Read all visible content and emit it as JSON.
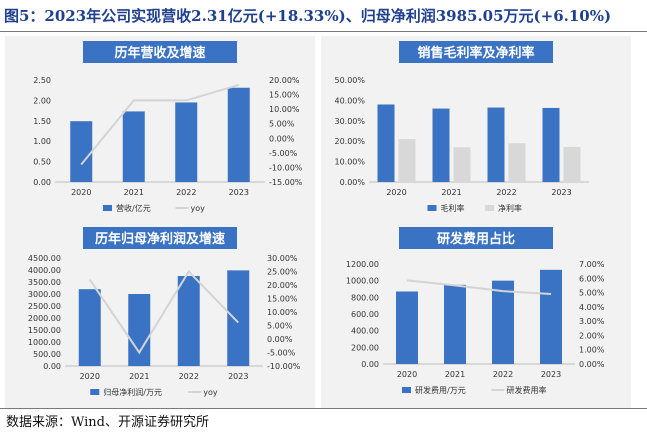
{
  "figure_title": "图5：2023年公司实现营收2.31亿元(+18.33%)、归母净利润3985.05万元(+6.10%)",
  "source": "数据来源：Wind、开源证券研究所",
  "colors": {
    "bar": "#3b73c4",
    "bar2": "#d8d8d8",
    "line": "#d4d4d4",
    "header": "#3b73c4",
    "panel_bg": "#f2f2f2"
  },
  "chart_data": [
    {
      "type": "bar",
      "title": "历年营收及增速",
      "categories": [
        "2020",
        "2021",
        "2022",
        "2023"
      ],
      "series": [
        {
          "name": "营收/亿元",
          "kind": "bar",
          "axis": "left",
          "values": [
            1.49,
            1.73,
            1.95,
            2.31
          ]
        },
        {
          "name": "yoy",
          "kind": "line",
          "axis": "right",
          "values": [
            -9.0,
            13.0,
            13.0,
            18.3
          ]
        }
      ],
      "ylim": [
        0,
        2.5
      ],
      "yticks": [
        "0.00",
        "0.50",
        "1.00",
        "1.50",
        "2.00",
        "2.50"
      ],
      "y2lim": [
        -15,
        20
      ],
      "y2ticks": [
        "-15.00%",
        "-10.00%",
        "-5.00%",
        "0.00%",
        "5.00%",
        "10.00%",
        "15.00%",
        "20.00%"
      ],
      "legend": [
        "营收/亿元",
        "yoy"
      ]
    },
    {
      "type": "bar",
      "title": "销售毛利率及净利率",
      "categories": [
        "2020",
        "2021",
        "2022",
        "2023"
      ],
      "series": [
        {
          "name": "毛利率",
          "kind": "bar",
          "axis": "left",
          "values": [
            38.0,
            36.0,
            36.5,
            36.3
          ]
        },
        {
          "name": "净利率",
          "kind": "bar",
          "axis": "left",
          "values": [
            21.0,
            17.0,
            19.0,
            17.2
          ]
        }
      ],
      "ylim": [
        0,
        50
      ],
      "yticks": [
        "0.00%",
        "10.00%",
        "20.00%",
        "30.00%",
        "40.00%",
        "50.00%"
      ],
      "legend": [
        "毛利率",
        "净利率"
      ]
    },
    {
      "type": "bar",
      "title": "历年归母净利润及增速",
      "categories": [
        "2020",
        "2021",
        "2022",
        "2023"
      ],
      "series": [
        {
          "name": "归母净利润/万元",
          "kind": "bar",
          "axis": "left",
          "values": [
            3200,
            3000,
            3750,
            3985
          ]
        },
        {
          "name": "yoy",
          "kind": "line",
          "axis": "right",
          "values": [
            22.0,
            -5.0,
            25.0,
            6.1
          ]
        }
      ],
      "ylim": [
        0,
        4500
      ],
      "yticks": [
        "0.00",
        "500.00",
        "1000.00",
        "1500.00",
        "2000.00",
        "2500.00",
        "3000.00",
        "3500.00",
        "4000.00",
        "4500.00"
      ],
      "y2lim": [
        -10,
        30
      ],
      "y2ticks": [
        "-10.00%",
        "-5.00%",
        "0.00%",
        "5.00%",
        "10.00%",
        "15.00%",
        "20.00%",
        "25.00%",
        "30.00%"
      ],
      "legend": [
        "归母净利润/万元",
        "yoy"
      ]
    },
    {
      "type": "bar",
      "title": "研发费用占比",
      "categories": [
        "2020",
        "2021",
        "2022",
        "2023"
      ],
      "series": [
        {
          "name": "研发费用/万元",
          "kind": "bar",
          "axis": "left",
          "values": [
            870,
            950,
            1000,
            1130
          ]
        },
        {
          "name": "研发费用率",
          "kind": "line",
          "axis": "right",
          "values": [
            5.85,
            5.5,
            5.1,
            4.9
          ]
        }
      ],
      "ylim": [
        0,
        1200
      ],
      "yticks": [
        "0.00",
        "200.00",
        "400.00",
        "600.00",
        "800.00",
        "1000.00",
        "1200.00"
      ],
      "y2lim": [
        0,
        7
      ],
      "y2ticks": [
        "0.00%",
        "1.00%",
        "2.00%",
        "3.00%",
        "4.00%",
        "5.00%",
        "6.00%",
        "7.00%"
      ],
      "legend": [
        "研发费用/万元",
        "研发费用率"
      ]
    }
  ]
}
